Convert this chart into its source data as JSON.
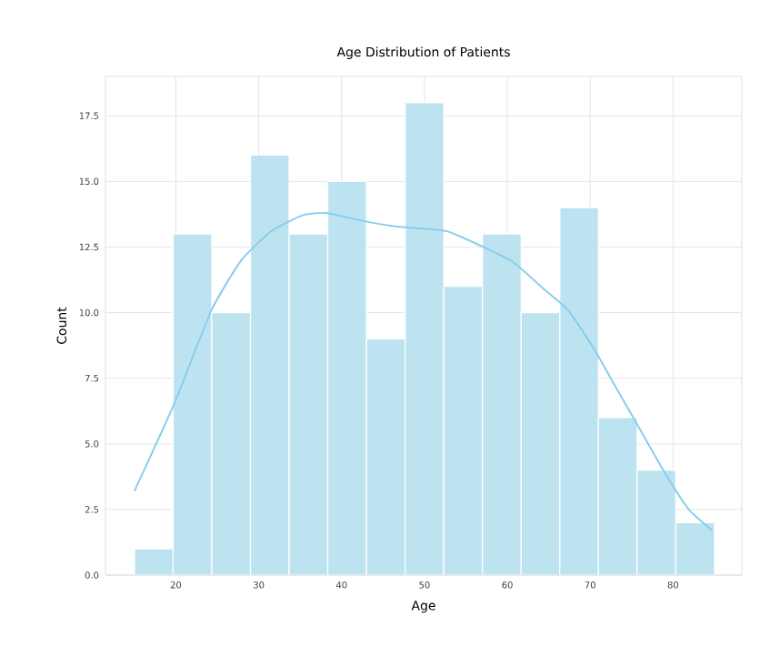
{
  "chart_data": {
    "type": "histogram",
    "title": "Age Distribution of Patients",
    "xlabel": "Age",
    "ylabel": "Count",
    "xlim": [
      11.5,
      88.3
    ],
    "ylim": [
      0,
      19
    ],
    "xticks": [
      20,
      30,
      40,
      50,
      60,
      70,
      80
    ],
    "yticks": [
      {
        "value": 0,
        "label": "0.0"
      },
      {
        "value": 2.5,
        "label": "2.5"
      },
      {
        "value": 5,
        "label": "5.0"
      },
      {
        "value": 7.5,
        "label": "7.5"
      },
      {
        "value": 10,
        "label": "10.0"
      },
      {
        "value": 12.5,
        "label": "12.5"
      },
      {
        "value": 15,
        "label": "15.0"
      },
      {
        "value": 17.5,
        "label": "17.5"
      }
    ],
    "grid": true,
    "series": [
      {
        "color": "#bde3f1",
        "bins": [
          15,
          19.67,
          24.33,
          29,
          33.67,
          38.33,
          43,
          47.67,
          52.33,
          57,
          61.67,
          66.33,
          71,
          75.67,
          80.33,
          85
        ],
        "values": [
          1,
          13,
          10,
          16,
          13,
          15,
          9,
          18,
          11,
          13,
          10,
          14,
          6,
          4,
          2
        ]
      },
      {
        "type": "line",
        "color": "#87ceeb",
        "x": [
          15.0,
          19.9,
          24.3,
          27.9,
          31.5,
          35.2,
          38.1,
          42.5,
          46.2,
          49.8,
          52.7,
          57.1,
          60.8,
          64.4,
          67.3,
          70.3,
          73.2,
          76.1,
          79.0,
          81.9,
          84.7
        ],
        "values": [
          3.2,
          6.6,
          10.1,
          12.0,
          13.1,
          13.7,
          13.8,
          13.5,
          13.3,
          13.2,
          13.1,
          12.5,
          11.9,
          10.9,
          10.1,
          8.7,
          7.1,
          5.5,
          3.9,
          2.5,
          1.7
        ]
      }
    ]
  }
}
